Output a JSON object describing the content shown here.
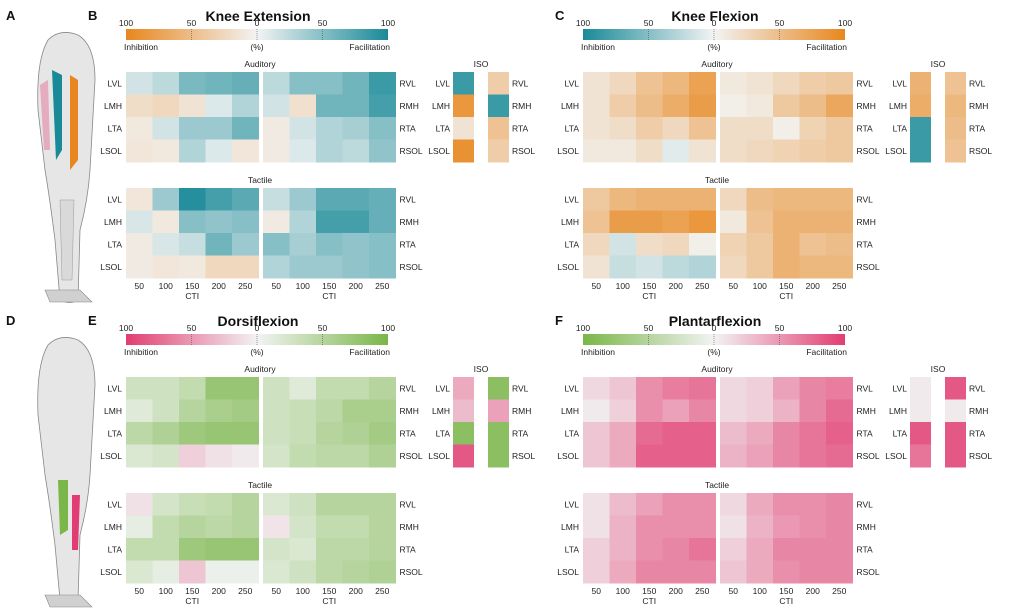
{
  "panel_letters": [
    "A",
    "B",
    "C",
    "D",
    "E",
    "F"
  ],
  "colors": {
    "orange": "#e8871e",
    "teal": "#1a8a98",
    "pink": "#e23d72",
    "green": "#7ab648",
    "neutral": "#f2f3f3"
  },
  "labels": {
    "section_auditory": "Auditory",
    "section_tactile": "Tactile",
    "iso": "ISO",
    "cti": "CTI",
    "percent": "(%)",
    "inhibition": "Inhibition",
    "facilitation": "Facilitation"
  },
  "chart_data": [
    {
      "panel": "B",
      "type": "heatmap",
      "title": "Knee Extension",
      "colorbar": {
        "ticks": [
          "100",
          "50",
          "0",
          "50",
          "100"
        ],
        "left_color": "orange",
        "right_color": "teal",
        "left_label": "Inhibition",
        "right_label": "Facilitation",
        "unit": "(%)"
      },
      "x_ticks": [
        "50",
        "100",
        "150",
        "200",
        "250"
      ],
      "x_label": "CTI",
      "left_muscles": [
        "LVL",
        "LMH",
        "LTA",
        "LSOL"
      ],
      "right_muscles": [
        "RVL",
        "RMH",
        "RTA",
        "RSOL"
      ],
      "auditory": {
        "left": [
          [
            15,
            25,
            55,
            60,
            65
          ],
          [
            -20,
            -25,
            -15,
            10,
            30
          ],
          [
            -10,
            15,
            40,
            40,
            60
          ],
          [
            -12,
            -10,
            30,
            10,
            -12
          ]
        ],
        "right": [
          [
            25,
            50,
            50,
            60,
            85
          ],
          [
            15,
            -18,
            60,
            60,
            80
          ],
          [
            -8,
            15,
            30,
            35,
            50
          ],
          [
            -8,
            10,
            30,
            25,
            45
          ]
        ]
      },
      "tactile": {
        "left": [
          [
            -12,
            40,
            95,
            80,
            70
          ],
          [
            12,
            -10,
            50,
            45,
            50
          ],
          [
            -8,
            12,
            20,
            60,
            40
          ],
          [
            -8,
            -12,
            -10,
            -25,
            -25
          ]
        ],
        "right": [
          [
            20,
            40,
            70,
            70,
            65
          ],
          [
            -8,
            30,
            80,
            80,
            65
          ],
          [
            50,
            35,
            50,
            45,
            50
          ],
          [
            30,
            40,
            40,
            45,
            50
          ]
        ]
      },
      "iso": {
        "left": [
          85,
          -85,
          -15,
          -90
        ],
        "right": [
          -35,
          85,
          -45,
          -35
        ]
      }
    },
    {
      "panel": "C",
      "type": "heatmap",
      "title": "Knee Flexion",
      "colorbar": {
        "ticks": [
          "100",
          "50",
          "0",
          "50",
          "100"
        ],
        "left_color": "teal",
        "right_color": "orange",
        "left_label": "Inhibition",
        "right_label": "Facilitation",
        "unit": "(%)"
      },
      "x_ticks": [
        "50",
        "100",
        "150",
        "200",
        "250"
      ],
      "x_label": "CTI",
      "left_muscles": [
        "LVL",
        "LMH",
        "LTA",
        "LSOL"
      ],
      "right_muscles": [
        "RVL",
        "RMH",
        "RTA",
        "RSOL"
      ],
      "auditory": {
        "left": [
          [
            15,
            25,
            45,
            55,
            75
          ],
          [
            15,
            35,
            50,
            65,
            80
          ],
          [
            15,
            20,
            35,
            25,
            45
          ],
          [
            10,
            10,
            20,
            -8,
            15
          ]
        ],
        "right": [
          [
            10,
            15,
            25,
            35,
            40
          ],
          [
            5,
            10,
            40,
            50,
            70
          ],
          [
            20,
            20,
            5,
            30,
            40
          ],
          [
            20,
            25,
            30,
            35,
            40
          ]
        ]
      },
      "tactile": {
        "left": [
          [
            40,
            55,
            60,
            60,
            60
          ],
          [
            45,
            80,
            80,
            75,
            85
          ],
          [
            25,
            -15,
            20,
            25,
            5
          ],
          [
            15,
            -20,
            -15,
            -25,
            -30
          ]
        ],
        "right": [
          [
            25,
            50,
            55,
            55,
            55
          ],
          [
            10,
            45,
            60,
            60,
            60
          ],
          [
            30,
            40,
            60,
            45,
            50
          ],
          [
            25,
            40,
            60,
            55,
            55
          ]
        ]
      },
      "iso": {
        "left": [
          60,
          65,
          -85,
          -85
        ],
        "right": [
          45,
          55,
          50,
          45
        ]
      }
    },
    {
      "panel": "E",
      "type": "heatmap",
      "title": "Dorsiflexion",
      "colorbar": {
        "ticks": [
          "100",
          "50",
          "0",
          "50",
          "100"
        ],
        "left_color": "pink",
        "right_color": "green",
        "left_label": "Inhibition",
        "right_label": "Facilitation",
        "unit": "(%)"
      },
      "x_ticks": [
        "50",
        "100",
        "150",
        "200",
        "250"
      ],
      "x_label": "CTI",
      "left_muscles": [
        "LVL",
        "LMH",
        "LTA",
        "LSOL"
      ],
      "right_muscles": [
        "RVL",
        "RMH",
        "RTA",
        "RSOL"
      ],
      "auditory": {
        "left": [
          [
            30,
            30,
            40,
            75,
            75
          ],
          [
            15,
            30,
            50,
            60,
            65
          ],
          [
            45,
            55,
            70,
            75,
            75
          ],
          [
            20,
            25,
            -20,
            -10,
            -5
          ]
        ],
        "right": [
          [
            30,
            15,
            40,
            40,
            50
          ],
          [
            30,
            35,
            45,
            60,
            60
          ],
          [
            30,
            35,
            50,
            55,
            65
          ],
          [
            25,
            40,
            45,
            45,
            55
          ]
        ]
      },
      "tactile": {
        "left": [
          [
            -10,
            25,
            35,
            40,
            50
          ],
          [
            10,
            40,
            50,
            45,
            50
          ],
          [
            40,
            40,
            70,
            75,
            75
          ],
          [
            20,
            10,
            -25,
            5,
            5
          ]
        ],
        "right": [
          [
            20,
            30,
            50,
            50,
            50
          ],
          [
            -8,
            25,
            40,
            40,
            50
          ],
          [
            25,
            20,
            45,
            45,
            50
          ],
          [
            20,
            30,
            45,
            50,
            55
          ]
        ]
      },
      "iso": {
        "left": [
          -40,
          -30,
          85,
          -85
        ],
        "right": [
          85,
          -45,
          85,
          85
        ]
      }
    },
    {
      "panel": "F",
      "type": "heatmap",
      "title": "Plantarflexion",
      "colorbar": {
        "ticks": [
          "100",
          "50",
          "0",
          "50",
          "100"
        ],
        "left_color": "green",
        "right_color": "pink",
        "left_label": "Inhibition",
        "right_label": "Facilitation",
        "unit": "(%)"
      },
      "x_ticks": [
        "50",
        "100",
        "150",
        "200",
        "250"
      ],
      "x_label": "CTI",
      "left_muscles": [
        "LVL",
        "LMH",
        "LTA",
        "LSOL"
      ],
      "right_muscles": [
        "RVL",
        "RMH",
        "RTA",
        "RSOL"
      ],
      "auditory": {
        "left": [
          [
            15,
            25,
            55,
            65,
            70
          ],
          [
            5,
            20,
            55,
            45,
            60
          ],
          [
            25,
            40,
            75,
            80,
            80
          ],
          [
            25,
            40,
            80,
            80,
            80
          ]
        ],
        "right": [
          [
            15,
            20,
            45,
            60,
            65
          ],
          [
            15,
            20,
            35,
            60,
            75
          ],
          [
            30,
            40,
            60,
            70,
            80
          ],
          [
            35,
            45,
            60,
            70,
            75
          ]
        ]
      },
      "tactile": {
        "left": [
          [
            10,
            30,
            45,
            55,
            55
          ],
          [
            10,
            35,
            55,
            55,
            55
          ],
          [
            20,
            35,
            55,
            60,
            70
          ],
          [
            20,
            40,
            60,
            60,
            60
          ]
        ],
        "right": [
          [
            15,
            40,
            55,
            55,
            60
          ],
          [
            10,
            35,
            50,
            55,
            60
          ],
          [
            20,
            40,
            60,
            60,
            60
          ],
          [
            25,
            40,
            55,
            60,
            60
          ]
        ]
      },
      "iso": {
        "left": [
          5,
          5,
          85,
          70
        ],
        "right": [
          85,
          5,
          85,
          85
        ]
      }
    }
  ]
}
